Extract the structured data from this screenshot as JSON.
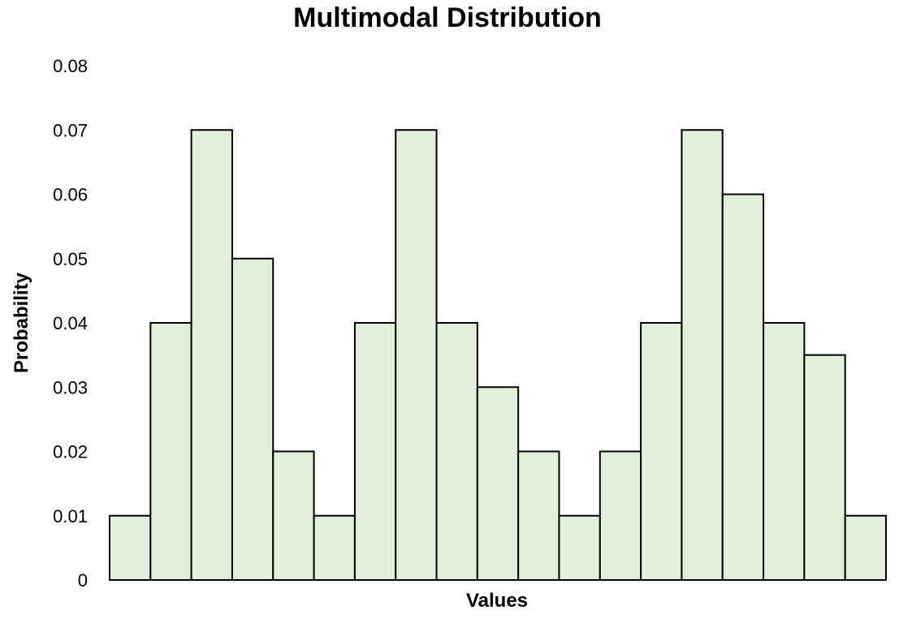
{
  "chart_data": {
    "type": "bar",
    "title": "Multimodal Distribution",
    "xlabel": "Values",
    "ylabel": "Probability",
    "ylim": [
      0,
      0.08
    ],
    "yticks": [
      "0",
      "0.01",
      "0.02",
      "0.03",
      "0.04",
      "0.05",
      "0.06",
      "0.07",
      "0.08"
    ],
    "grid": false,
    "legend": "none",
    "values": [
      0.01,
      0.04,
      0.07,
      0.05,
      0.02,
      0.01,
      0.04,
      0.07,
      0.04,
      0.03,
      0.02,
      0.01,
      0.02,
      0.04,
      0.07,
      0.06,
      0.04,
      0.035,
      0.01
    ],
    "colors": {
      "bar_fill": "#e2efda",
      "bar_stroke": "#000000",
      "axis": "#000000"
    }
  }
}
